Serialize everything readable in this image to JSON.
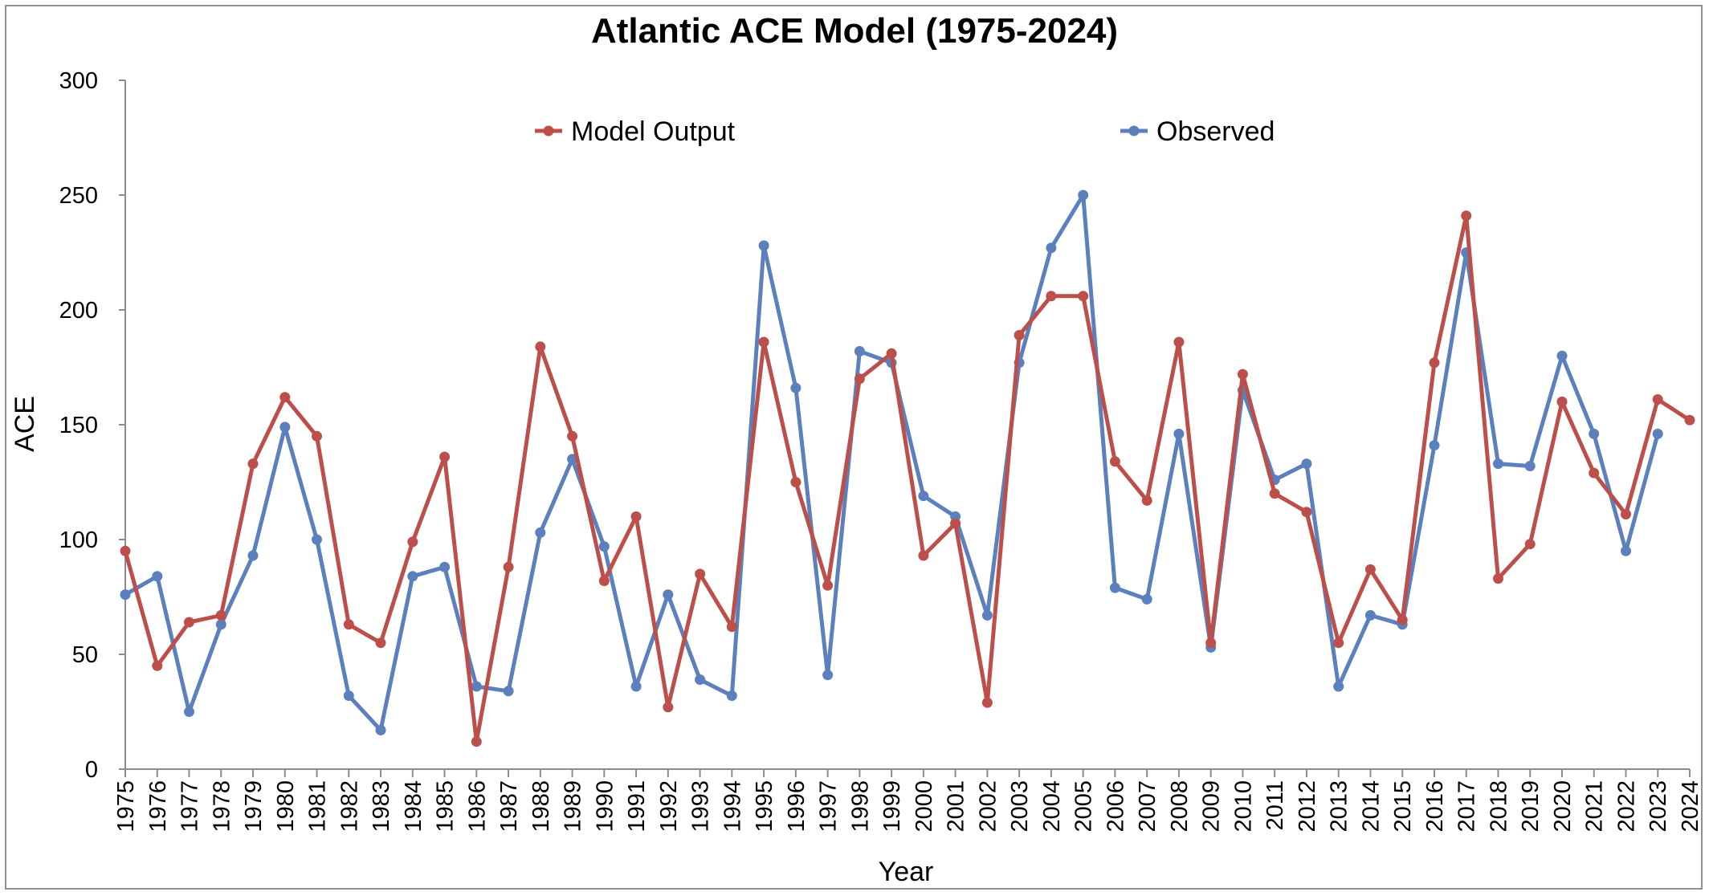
{
  "chart_data": {
    "type": "line",
    "title": "Atlantic ACE Model (1975-2024)",
    "xlabel": "Year",
    "ylabel": "ACE",
    "ylim": [
      0,
      300
    ],
    "yticks": [
      0,
      50,
      100,
      150,
      200,
      250,
      300
    ],
    "grid": false,
    "legend_position": "top",
    "x": [
      1975,
      1976,
      1977,
      1978,
      1979,
      1980,
      1981,
      1982,
      1983,
      1984,
      1985,
      1986,
      1987,
      1988,
      1989,
      1990,
      1991,
      1992,
      1993,
      1994,
      1995,
      1996,
      1997,
      1998,
      1999,
      2000,
      2001,
      2002,
      2003,
      2004,
      2005,
      2006,
      2007,
      2008,
      2009,
      2010,
      2011,
      2012,
      2013,
      2014,
      2015,
      2016,
      2017,
      2018,
      2019,
      2020,
      2021,
      2022,
      2023,
      2024
    ],
    "x_labels": [
      "1975",
      "1976",
      "1977",
      "1978",
      "1979",
      "1980",
      "1981",
      "1982",
      "1983",
      "1984",
      "1985",
      "1986",
      "1987",
      "1988",
      "1989",
      "1990",
      "1991",
      "1992",
      "1993",
      "1994",
      "1995",
      "1996",
      "1997",
      "1998",
      "1999",
      "2000",
      "2001",
      "2002",
      "2003",
      "2004",
      "2005",
      "2006",
      "2007",
      "2008",
      "2009",
      "2010",
      "2011",
      "2012",
      "2013",
      "2014",
      "2015",
      "2016",
      "2017",
      "2018",
      "2019",
      "2020",
      "2021",
      "2022",
      "2023",
      "2024"
    ],
    "series": [
      {
        "name": "Observed",
        "color": "#5b80bd",
        "values": [
          76,
          84,
          25,
          63,
          93,
          149,
          100,
          32,
          17,
          84,
          88,
          36,
          34,
          103,
          135,
          97,
          36,
          76,
          39,
          32,
          228,
          166,
          41,
          182,
          177,
          119,
          110,
          67,
          177,
          227,
          250,
          79,
          74,
          146,
          53,
          165,
          126,
          133,
          36,
          67,
          63,
          141,
          225,
          133,
          132,
          180,
          146,
          95,
          146,
          null
        ]
      },
      {
        "name": "Model Output",
        "color": "#bd4f4b",
        "values": [
          95,
          45,
          64,
          67,
          133,
          162,
          145,
          63,
          55,
          99,
          136,
          12,
          88,
          184,
          145,
          82,
          110,
          27,
          85,
          62,
          186,
          125,
          80,
          170,
          181,
          93,
          107,
          29,
          189,
          206,
          206,
          134,
          117,
          186,
          55,
          172,
          120,
          112,
          55,
          87,
          65,
          177,
          241,
          83,
          98,
          160,
          129,
          111,
          161,
          152
        ]
      }
    ]
  }
}
